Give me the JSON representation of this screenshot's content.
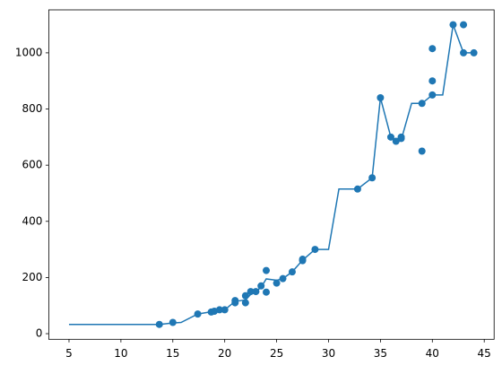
{
  "chart_data": {
    "type": "combo",
    "xlim": [
      3.05,
      45.95
    ],
    "ylim": [
      -20,
      1153
    ],
    "xticks": [
      5,
      10,
      15,
      20,
      25,
      30,
      35,
      40,
      45
    ],
    "yticks": [
      0,
      200,
      400,
      600,
      800,
      1000
    ],
    "grid": false,
    "layers": [
      {
        "type": "line",
        "color": "#1f77b4",
        "x": [
          5,
          13.7,
          15,
          15.8,
          17.4,
          18.7,
          19.5,
          20,
          20.5,
          21,
          22,
          22.5,
          23,
          23.5,
          24,
          25,
          25.6,
          26.5,
          27.5,
          28.7,
          30,
          31,
          32.8,
          34.2,
          35,
          36,
          36.5,
          37,
          38,
          39,
          40,
          41,
          42,
          43,
          44
        ],
        "y": [
          33,
          33,
          38,
          40,
          70,
          78,
          85,
          85,
          100,
          115,
          120,
          140,
          150,
          165,
          195,
          190,
          196,
          220,
          262,
          300,
          300,
          515,
          515,
          555,
          840,
          700,
          690,
          690,
          820,
          820,
          850,
          850,
          1100,
          1000,
          1000
        ]
      },
      {
        "type": "scatter",
        "color": "#1f77b4",
        "x": [
          13.7,
          15,
          17.4,
          18.7,
          19,
          19.5,
          20,
          21,
          21,
          22,
          22,
          22.5,
          23,
          23.5,
          24,
          24,
          25,
          25.6,
          26.5,
          27.5,
          27.5,
          28.7,
          32.8,
          34.2,
          35,
          36,
          36.5,
          37,
          37,
          39,
          39,
          40,
          40,
          40,
          42,
          43,
          43,
          44
        ],
        "y": [
          33,
          40,
          70,
          77,
          80,
          85,
          85,
          110,
          118,
          110,
          135,
          150,
          150,
          170,
          225,
          148,
          180,
          196,
          220,
          260,
          265,
          300,
          515,
          555,
          840,
          700,
          685,
          695,
          700,
          650,
          820,
          850,
          900,
          1015,
          1100,
          1100,
          1000,
          1000
        ]
      }
    ]
  }
}
